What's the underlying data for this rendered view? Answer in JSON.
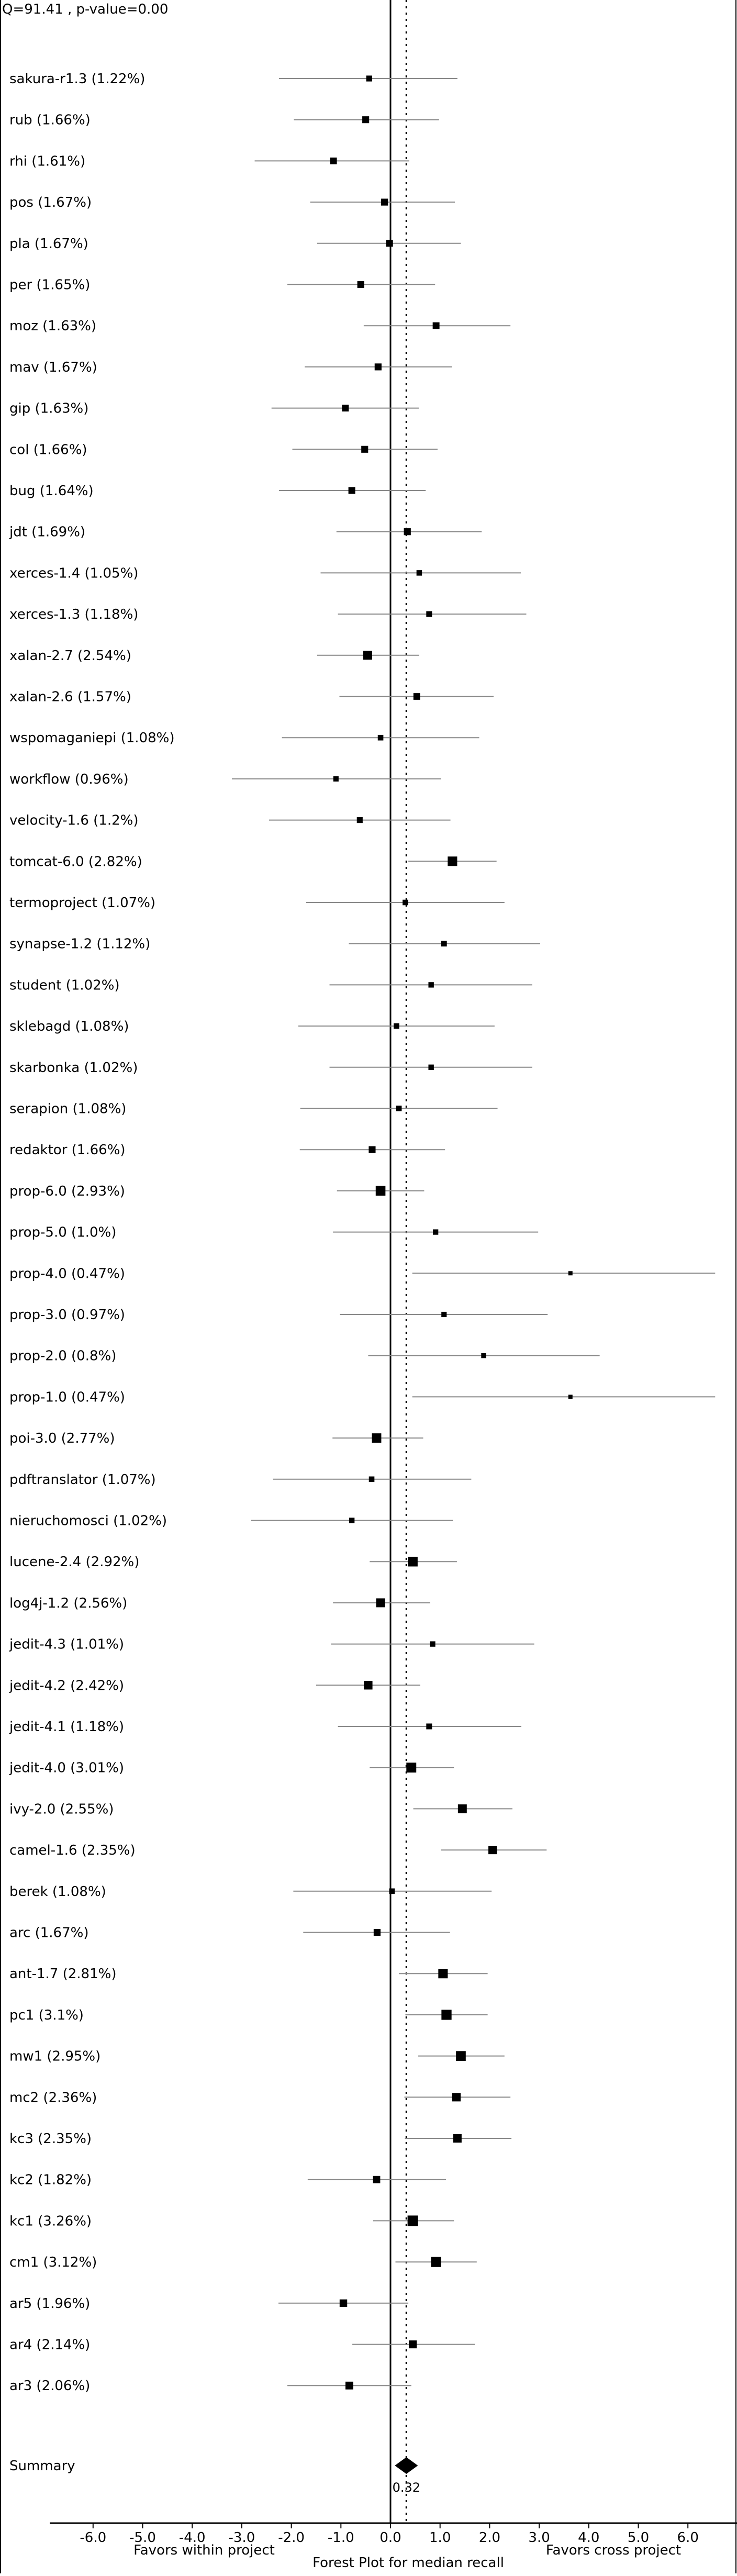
{
  "chart_data": {
    "type": "forest",
    "stats": "Q=91.41 , p-value=0.00",
    "xlabel": "Forest Plot for median recall",
    "left_note": "Favors within project",
    "right_note": "Favors cross project",
    "xlim": [
      -7.0,
      6.7
    ],
    "xticks": [
      "-6.0",
      "-5.0",
      "-4.0",
      "-3.0",
      "-2.0",
      "-1.0",
      "0.0",
      "1.0",
      "2.0",
      "3.0",
      "4.0",
      "5.0",
      "6.0"
    ],
    "reference_line": 0.0,
    "summary_line": 0.32,
    "studies": [
      {
        "label": "sakura-r1.3 (1.22%)",
        "effect": -0.43,
        "lo": -2.25,
        "hi": 1.35,
        "weight": 1.22
      },
      {
        "label": "rub (1.66%)",
        "effect": -0.5,
        "lo": -1.95,
        "hi": 0.98,
        "weight": 1.66
      },
      {
        "label": "rhi (1.61%)",
        "effect": -1.15,
        "lo": -2.74,
        "hi": 0.38,
        "weight": 1.61
      },
      {
        "label": "pos (1.67%)",
        "effect": -0.12,
        "lo": -1.62,
        "hi": 1.3,
        "weight": 1.67
      },
      {
        "label": "pla (1.67%)",
        "effect": -0.02,
        "lo": -1.48,
        "hi": 1.42,
        "weight": 1.67
      },
      {
        "label": "per (1.65%)",
        "effect": -0.6,
        "lo": -2.08,
        "hi": 0.9,
        "weight": 1.65
      },
      {
        "label": "moz (1.63%)",
        "effect": 0.92,
        "lo": -0.54,
        "hi": 2.42,
        "weight": 1.63
      },
      {
        "label": "mav (1.67%)",
        "effect": -0.25,
        "lo": -1.73,
        "hi": 1.24,
        "weight": 1.67
      },
      {
        "label": "gip (1.63%)",
        "effect": -0.91,
        "lo": -2.4,
        "hi": 0.57,
        "weight": 1.63
      },
      {
        "label": "col (1.66%)",
        "effect": -0.52,
        "lo": -1.98,
        "hi": 0.95,
        "weight": 1.66
      },
      {
        "label": "bug (1.64%)",
        "effect": -0.78,
        "lo": -2.25,
        "hi": 0.71,
        "weight": 1.64
      },
      {
        "label": "jdt (1.69%)",
        "effect": 0.34,
        "lo": -1.09,
        "hi": 1.84,
        "weight": 1.69
      },
      {
        "label": "xerces-1.4 (1.05%)",
        "effect": 0.58,
        "lo": -1.41,
        "hi": 2.63,
        "weight": 1.05
      },
      {
        "label": "xerces-1.3 (1.18%)",
        "effect": 0.78,
        "lo": -1.06,
        "hi": 2.74,
        "weight": 1.18
      },
      {
        "label": "xalan-2.7 (2.54%)",
        "effect": -0.46,
        "lo": -1.48,
        "hi": 0.58,
        "weight": 2.54
      },
      {
        "label": "xalan-2.6 (1.57%)",
        "effect": 0.53,
        "lo": -1.03,
        "hi": 2.08,
        "weight": 1.57
      },
      {
        "label": "wspomaganiepi (1.08%)",
        "effect": -0.2,
        "lo": -2.19,
        "hi": 1.79,
        "weight": 1.08
      },
      {
        "label": "workflow (0.96%)",
        "effect": -1.1,
        "lo": -3.2,
        "hi": 1.02,
        "weight": 0.96
      },
      {
        "label": "velocity-1.6 (1.2%)",
        "effect": -0.62,
        "lo": -2.45,
        "hi": 1.21,
        "weight": 1.2
      },
      {
        "label": "tomcat-6.0 (2.82%)",
        "effect": 1.25,
        "lo": 0.36,
        "hi": 2.14,
        "weight": 2.82
      },
      {
        "label": "termoproject (1.07%)",
        "effect": 0.3,
        "lo": -1.7,
        "hi": 2.3,
        "weight": 1.07
      },
      {
        "label": "synapse-1.2 (1.12%)",
        "effect": 1.08,
        "lo": -0.84,
        "hi": 3.02,
        "weight": 1.12
      },
      {
        "label": "student (1.02%)",
        "effect": 0.82,
        "lo": -1.23,
        "hi": 2.86,
        "weight": 1.02
      },
      {
        "label": "sklebagd (1.08%)",
        "effect": 0.12,
        "lo": -1.86,
        "hi": 2.1,
        "weight": 1.08
      },
      {
        "label": "skarbonka (1.02%)",
        "effect": 0.82,
        "lo": -1.23,
        "hi": 2.86,
        "weight": 1.02
      },
      {
        "label": "serapion (1.08%)",
        "effect": 0.17,
        "lo": -1.82,
        "hi": 2.16,
        "weight": 1.08
      },
      {
        "label": "redaktor (1.66%)",
        "effect": -0.37,
        "lo": -1.83,
        "hi": 1.1,
        "weight": 1.66
      },
      {
        "label": "prop-6.0 (2.93%)",
        "effect": -0.2,
        "lo": -1.08,
        "hi": 0.68,
        "weight": 2.93
      },
      {
        "label": "prop-5.0 (1.0%)",
        "effect": 0.91,
        "lo": -1.16,
        "hi": 2.98,
        "weight": 1.0
      },
      {
        "label": "prop-4.0 (0.47%)",
        "effect": 3.63,
        "lo": 0.44,
        "hi": 6.55,
        "weight": 0.47
      },
      {
        "label": "prop-3.0 (0.97%)",
        "effect": 1.08,
        "lo": -1.02,
        "hi": 3.17,
        "weight": 0.97
      },
      {
        "label": "prop-2.0 (0.8%)",
        "effect": 1.88,
        "lo": -0.45,
        "hi": 4.22,
        "weight": 0.8
      },
      {
        "label": "prop-1.0 (0.47%)",
        "effect": 3.63,
        "lo": 0.44,
        "hi": 6.55,
        "weight": 0.47
      },
      {
        "label": "poi-3.0 (2.77%)",
        "effect": -0.28,
        "lo": -1.17,
        "hi": 0.66,
        "weight": 2.77
      },
      {
        "label": "pdftranslator (1.07%)",
        "effect": -0.38,
        "lo": -2.37,
        "hi": 1.63,
        "weight": 1.07
      },
      {
        "label": "nieruchomosci (1.02%)",
        "effect": -0.78,
        "lo": -2.81,
        "hi": 1.26,
        "weight": 1.02
      },
      {
        "label": "lucene-2.4 (2.92%)",
        "effect": 0.45,
        "lo": -0.42,
        "hi": 1.34,
        "weight": 2.92
      },
      {
        "label": "log4j-1.2 (2.56%)",
        "effect": -0.2,
        "lo": -1.16,
        "hi": 0.8,
        "weight": 2.56
      },
      {
        "label": "jedit-4.3 (1.01%)",
        "effect": 0.85,
        "lo": -1.2,
        "hi": 2.9,
        "weight": 1.01
      },
      {
        "label": "jedit-4.2 (2.42%)",
        "effect": -0.45,
        "lo": -1.5,
        "hi": 0.6,
        "weight": 2.42
      },
      {
        "label": "jedit-4.1 (1.18%)",
        "effect": 0.78,
        "lo": -1.06,
        "hi": 2.64,
        "weight": 1.18
      },
      {
        "label": "jedit-4.0 (3.01%)",
        "effect": 0.42,
        "lo": -0.42,
        "hi": 1.28,
        "weight": 3.01
      },
      {
        "label": "ivy-2.0 (2.55%)",
        "effect": 1.45,
        "lo": 0.46,
        "hi": 2.46,
        "weight": 2.55
      },
      {
        "label": "camel-1.6 (2.35%)",
        "effect": 2.06,
        "lo": 1.02,
        "hi": 3.15,
        "weight": 2.35
      },
      {
        "label": "berek (1.08%)",
        "effect": 0.03,
        "lo": -1.96,
        "hi": 2.04,
        "weight": 1.08
      },
      {
        "label": "arc (1.67%)",
        "effect": -0.27,
        "lo": -1.76,
        "hi": 1.2,
        "weight": 1.67
      },
      {
        "label": "ant-1.7 (2.81%)",
        "effect": 1.06,
        "lo": 0.17,
        "hi": 1.96,
        "weight": 2.81
      },
      {
        "label": "pc1 (3.1%)",
        "effect": 1.13,
        "lo": 0.3,
        "hi": 1.96,
        "weight": 3.1
      },
      {
        "label": "mw1 (2.95%)",
        "effect": 1.42,
        "lo": 0.56,
        "hi": 2.3,
        "weight": 2.95
      },
      {
        "label": "mc2 (2.36%)",
        "effect": 1.33,
        "lo": 0.28,
        "hi": 2.42,
        "weight": 2.36
      },
      {
        "label": "kc3 (2.35%)",
        "effect": 1.35,
        "lo": 0.29,
        "hi": 2.44,
        "weight": 2.35
      },
      {
        "label": "kc2 (1.82%)",
        "effect": -0.28,
        "lo": -1.67,
        "hi": 1.12,
        "weight": 1.82
      },
      {
        "label": "kc1 (3.26%)",
        "effect": 0.45,
        "lo": -0.35,
        "hi": 1.28,
        "weight": 3.26
      },
      {
        "label": "cm1 (3.12%)",
        "effect": 0.92,
        "lo": 0.1,
        "hi": 1.74,
        "weight": 3.12
      },
      {
        "label": "ar5 (1.96%)",
        "effect": -0.95,
        "lo": -2.26,
        "hi": 0.36,
        "weight": 1.96
      },
      {
        "label": "ar4 (2.14%)",
        "effect": 0.45,
        "lo": -0.77,
        "hi": 1.7,
        "weight": 2.14
      },
      {
        "label": "ar3 (2.06%)",
        "effect": -0.83,
        "lo": -2.08,
        "hi": 0.42,
        "weight": 2.06
      }
    ],
    "summary": {
      "label": "Summary",
      "effect": 0.32,
      "value_label": "0.32"
    }
  }
}
